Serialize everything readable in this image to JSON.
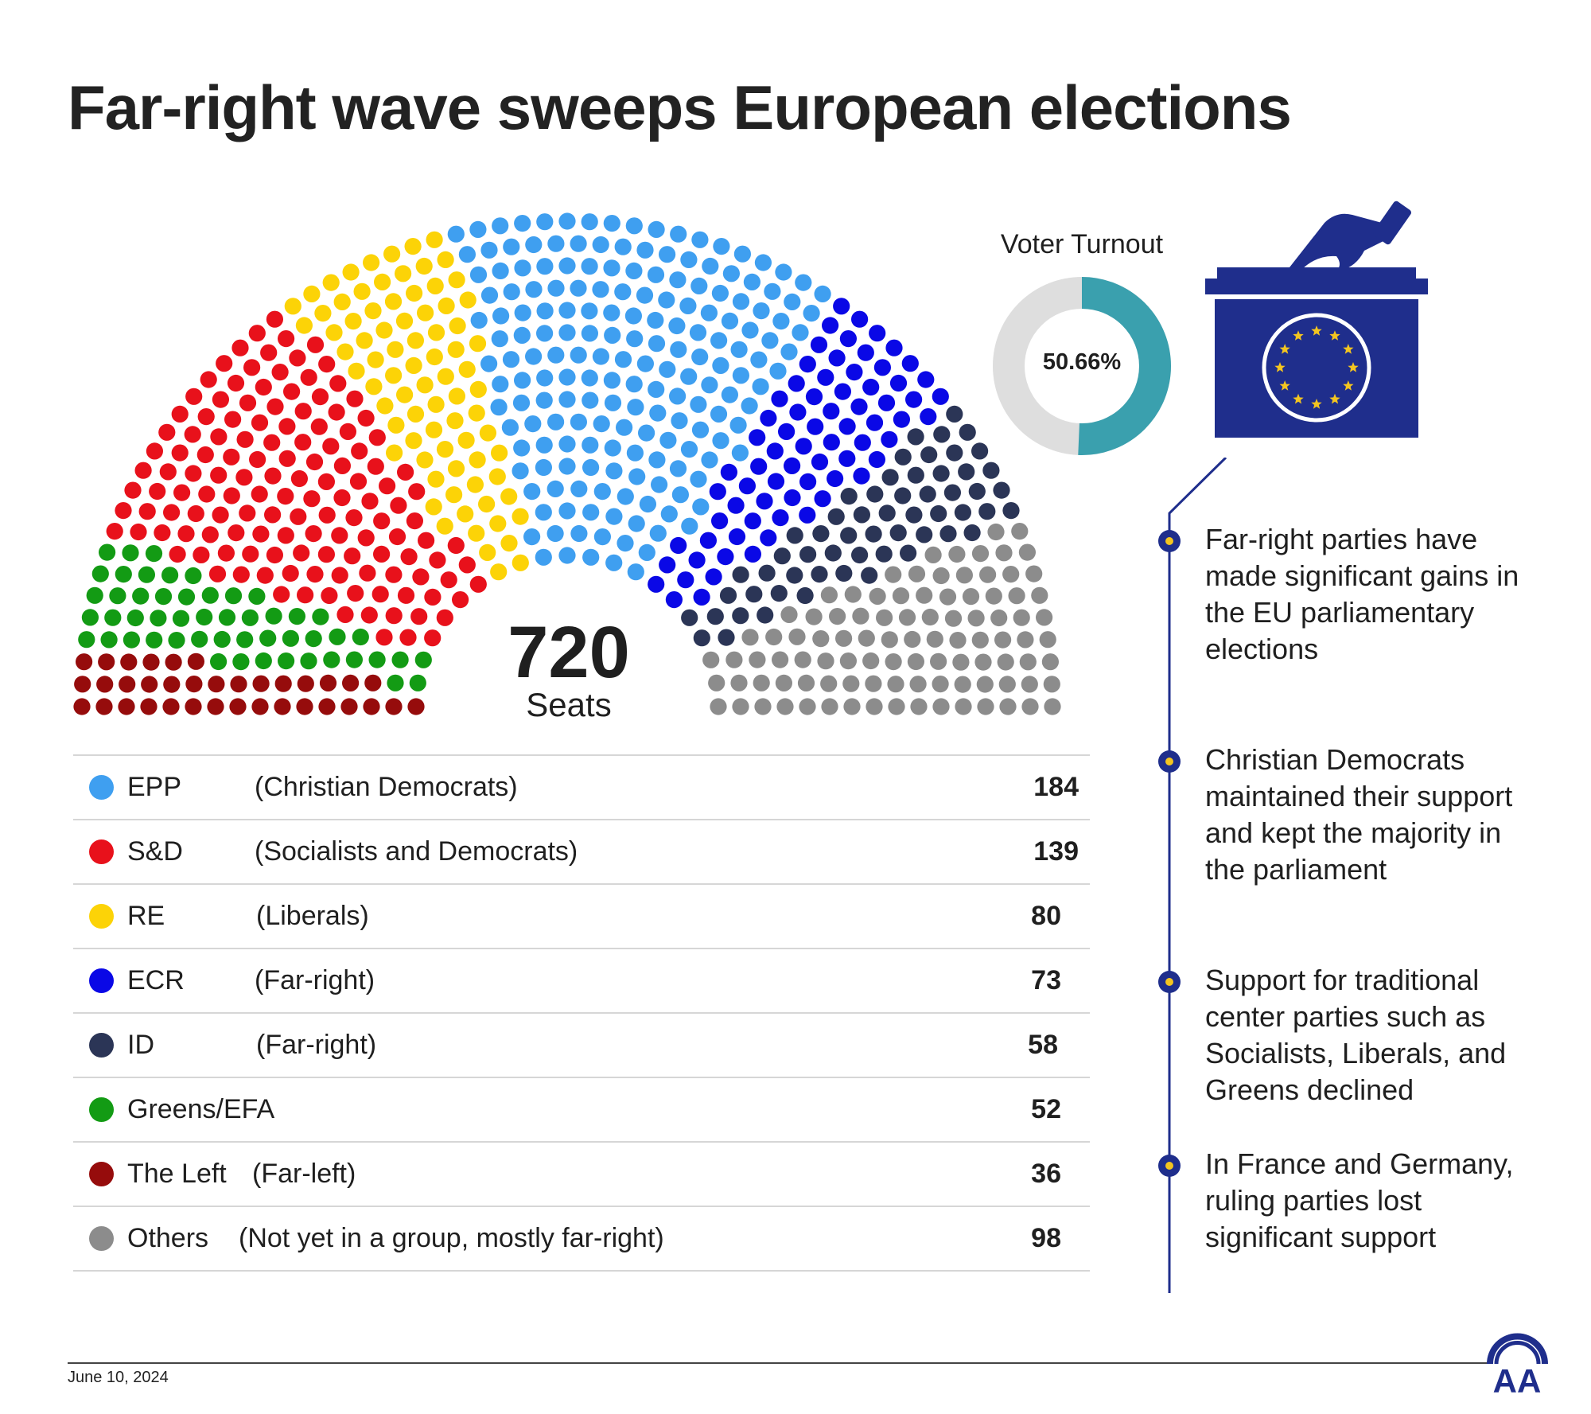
{
  "title": "Far-right wave sweeps European elections",
  "hemicycle": {
    "total_seats": "720",
    "seats_label": "Seats"
  },
  "chart_data": {
    "type": "hemicycle",
    "title": "Far-right wave sweeps European elections",
    "total": 720,
    "parties": [
      {
        "abbr": "EPP",
        "description": "(Christian Democrats)",
        "seats": 184,
        "color": "#3f9ff0"
      },
      {
        "abbr": "S&D",
        "description": "(Socialists and Democrats)",
        "seats": 139,
        "color": "#e8111b"
      },
      {
        "abbr": "RE",
        "description": "(Liberals)",
        "seats": 80,
        "color": "#fcd307"
      },
      {
        "abbr": "ECR",
        "description": "(Far-right)",
        "seats": 73,
        "color": "#0a08e6"
      },
      {
        "abbr": "ID",
        "description": "(Far-right)",
        "seats": 58,
        "color": "#2b3556"
      },
      {
        "abbr": "Greens/EFA",
        "description": "",
        "seats": 52,
        "color": "#139b14"
      },
      {
        "abbr": "The Left",
        "description": "(Far-left)",
        "seats": 36,
        "color": "#960c0c"
      },
      {
        "abbr": "Others",
        "description": "(Not yet in a group, mostly far-right)",
        "seats": 98,
        "color": "#8c8c8c"
      }
    ],
    "seating_order_left_to_right": [
      "The Left",
      "Greens/EFA",
      "S&D",
      "RE",
      "EPP",
      "ECR",
      "ID",
      "Others"
    ]
  },
  "turnout": {
    "title": "Voter Turnout",
    "value_label": "50.66%",
    "percent": 50.66,
    "color": "#3aa0ae",
    "track_color": "#dedede"
  },
  "notes": [
    "Far-right parties have made significant gains in the EU parliamentary elections",
    "Christian Democrats maintained their support and kept the majority in the parliament",
    "Support for traditional center parties such as Socialists, Liberals, and Greens declined",
    "In France and Germany, ruling parties lost significant support"
  ],
  "colors": {
    "accent_navy": "#1f2e8c",
    "bullet_fill": "#f4c520",
    "eu_star": "#f4c520"
  },
  "footer": {
    "date": "June 10, 2024"
  },
  "logo": {
    "text": "AA"
  }
}
